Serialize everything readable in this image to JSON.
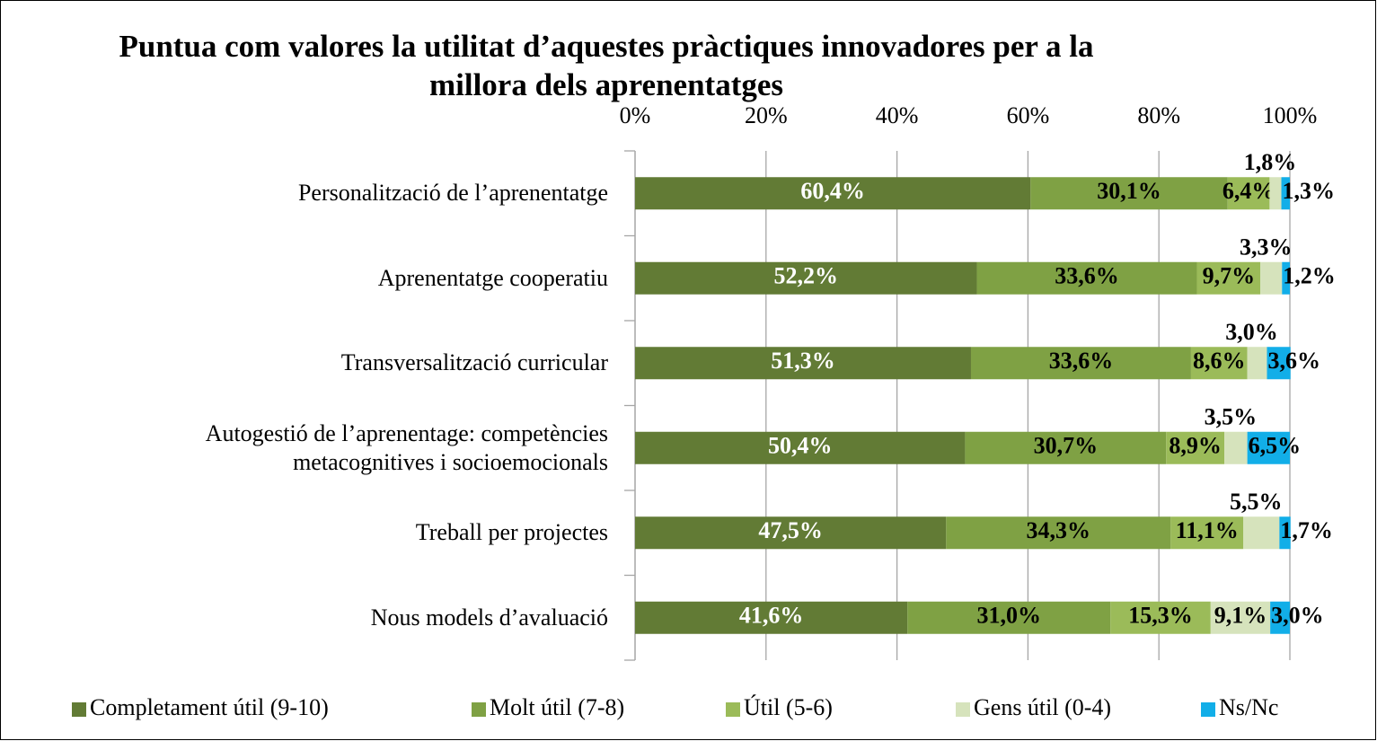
{
  "chart_data": {
    "type": "stacked_bar_horizontal",
    "title": "Puntua com valores la utilitat d’aquestes pràctiques innovadores per a la millora dels aprenentatges",
    "categories": [
      "Personalització de l’aprenentatge",
      "Aprenentatge cooperatiu",
      "Transversalització curricular",
      "Autogestió de l’aprenentage: competències metacognitives i socioemocionals",
      "Treball per projectes",
      "Nous models d’avaluació"
    ],
    "series": [
      {
        "name": "Completament útil (9-10)",
        "color": "#627b35",
        "values": [
          60.4,
          52.2,
          51.3,
          50.4,
          47.5,
          41.6
        ],
        "value_labels": [
          "60,4%",
          "52,2%",
          "51,3%",
          "50,4%",
          "47,5%",
          "41,6%"
        ]
      },
      {
        "name": "Molt útil (7-8)",
        "color": "#7fa144",
        "values": [
          30.1,
          33.6,
          33.6,
          30.7,
          34.3,
          31.0
        ],
        "value_labels": [
          "30,1%",
          "33,6%",
          "33,6%",
          "30,7%",
          "34,3%",
          "31,0%"
        ]
      },
      {
        "name": "Útil (5-6)",
        "color": "#9bbb59",
        "values": [
          6.4,
          9.7,
          8.6,
          8.9,
          11.1,
          15.3
        ],
        "value_labels": [
          "6,4%",
          "9,7%",
          "8,6%",
          "8,9%",
          "11,1%",
          "15,3%"
        ]
      },
      {
        "name": "Gens útil (0-4)",
        "color": "#d6e3bc",
        "values": [
          1.8,
          3.3,
          3.0,
          3.5,
          5.5,
          9.1
        ],
        "value_labels": [
          "1,8%",
          "3,3%",
          "3,0%",
          "3,5%",
          "5,5%",
          "9,1%"
        ]
      },
      {
        "name": "Ns/Nc",
        "color": "#12aee8",
        "values": [
          1.3,
          1.2,
          3.6,
          6.5,
          1.7,
          3.0
        ],
        "value_labels": [
          "1,3%",
          "1,2%",
          "3,6%",
          "6,5%",
          "1,7%",
          "3,0%"
        ]
      }
    ],
    "xlim": [
      0,
      100
    ],
    "xticks": [
      {
        "value": 0,
        "label": "0%"
      },
      {
        "value": 20,
        "label": "20%"
      },
      {
        "value": 40,
        "label": "40%"
      },
      {
        "value": 60,
        "label": "60%"
      },
      {
        "value": 80,
        "label": "80%"
      },
      {
        "value": 100,
        "label": "100%"
      }
    ],
    "grid": true,
    "legend": "bottom"
  }
}
